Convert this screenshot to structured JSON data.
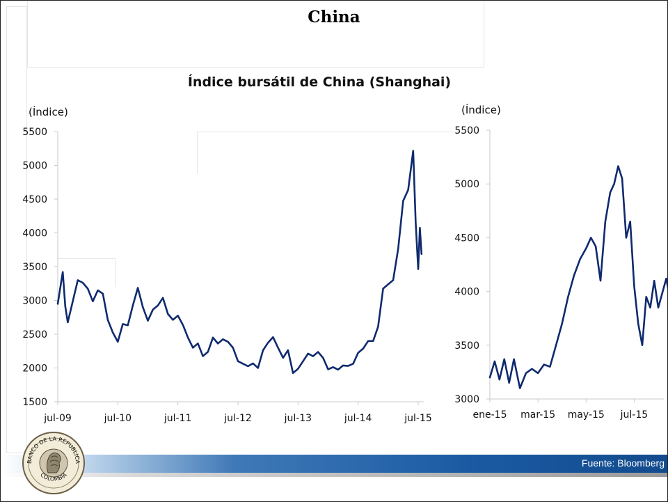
{
  "slide": {
    "title": "China",
    "source": "Fuente: Bloomberg",
    "seal_text_top": "BANCO DE LA REPUBLICA",
    "seal_text_bottom": "COLOMBIA"
  },
  "chart_data": [
    {
      "type": "line",
      "title": "Índice bursátil de China (Shanghai)",
      "ylabel": "(Índice)",
      "ylim": [
        1500,
        5500
      ],
      "yticks": [
        1500,
        2000,
        2500,
        3000,
        3500,
        4000,
        4500,
        5000,
        5500
      ],
      "xticks": [
        "jul-09",
        "jul-10",
        "jul-11",
        "jul-12",
        "jul-13",
        "jul-14",
        "jul-15"
      ],
      "xrange": [
        "jul-09",
        "jul-15"
      ],
      "line_color": "#0f2a6e",
      "grid": false,
      "series": [
        {
          "points": [
            [
              "jul-09",
              2950
            ],
            [
              "ago-09",
              3470
            ],
            [
              "ago-09",
              2950
            ],
            [
              "sep-09",
              2700
            ],
            [
              "oct-09",
              3000
            ],
            [
              "nov-09",
              3300
            ],
            [
              "dic-09",
              3250
            ],
            [
              "ene-10",
              3150
            ],
            [
              "feb-10",
              2950
            ],
            [
              "mar-10",
              3100
            ],
            [
              "abr-10",
              3150
            ],
            [
              "may-10",
              2750
            ],
            [
              "jun-10",
              2550
            ],
            [
              "jul-10",
              2400
            ],
            [
              "ago-10",
              2650
            ],
            [
              "sep-10",
              2620
            ],
            [
              "oct-10",
              2900
            ],
            [
              "nov-10",
              3150
            ],
            [
              "dic-10",
              2850
            ],
            [
              "ene-11",
              2750
            ],
            [
              "feb-11",
              2900
            ],
            [
              "mar-11",
              2950
            ],
            [
              "abr-11",
              3050
            ],
            [
              "may-11",
              2800
            ],
            [
              "jun-11",
              2700
            ],
            [
              "jul-11",
              2750
            ],
            [
              "ago-11",
              2600
            ],
            [
              "sep-11",
              2400
            ],
            [
              "oct-11",
              2350
            ],
            [
              "nov-11",
              2400
            ],
            [
              "dic-11",
              2200
            ],
            [
              "ene-12",
              2250
            ],
            [
              "feb-12",
              2450
            ],
            [
              "mar-12",
              2350
            ],
            [
              "abr-12",
              2400
            ],
            [
              "may-12",
              2350
            ],
            [
              "jun-12",
              2250
            ],
            [
              "jul-12",
              2150
            ],
            [
              "ago-12",
              2100
            ],
            [
              "sep-12",
              2050
            ],
            [
              "oct-12",
              2080
            ],
            [
              "nov-12",
              2000
            ],
            [
              "dic-12",
              2250
            ],
            [
              "ene-13",
              2350
            ],
            [
              "feb-13",
              2420
            ],
            [
              "mar-13",
              2250
            ],
            [
              "abr-13",
              2200
            ],
            [
              "may-13",
              2300
            ],
            [
              "jun-13",
              1950
            ],
            [
              "jul-13",
              2000
            ],
            [
              "ago-13",
              2100
            ],
            [
              "sep-13",
              2200
            ],
            [
              "oct-13",
              2150
            ],
            [
              "nov-13",
              2200
            ],
            [
              "dic-13",
              2100
            ],
            [
              "ene-14",
              2030
            ],
            [
              "feb-14",
              2050
            ],
            [
              "mar-14",
              2000
            ],
            [
              "abr-14",
              2050
            ],
            [
              "may-14",
              2030
            ],
            [
              "jun-14",
              2050
            ],
            [
              "jul-14",
              2200
            ],
            [
              "ago-14",
              2250
            ],
            [
              "sep-14",
              2350
            ],
            [
              "oct-14",
              2450
            ],
            [
              "nov-14",
              2650
            ],
            [
              "dic-14",
              3200
            ],
            [
              "ene-15",
              3250
            ],
            [
              "feb-15",
              3300
            ],
            [
              "mar-15",
              3750
            ],
            [
              "abr-15",
              4450
            ],
            [
              "may-15",
              4600
            ],
            [
              "jun-15",
              5166
            ],
            [
              "jun-15",
              4200
            ],
            [
              "jul-15",
              3500
            ],
            [
              "jul-15",
              4100
            ],
            [
              "jul-15",
              3700
            ]
          ]
        }
      ]
    },
    {
      "type": "line",
      "ylabel": "(Índice)",
      "ylim": [
        3000,
        5500
      ],
      "yticks": [
        3000,
        3500,
        4000,
        4500,
        5000,
        5500
      ],
      "xticks": [
        "ene-15",
        "mar-15",
        "may-15",
        "jul-15"
      ],
      "xrange": [
        "ene-15",
        "ago-15"
      ],
      "line_color": "#0f2a6e",
      "grid": false,
      "series": [
        {
          "points": [
            [
              "ene-15",
              3200
            ],
            [
              "ene-15",
              3350
            ],
            [
              "ene-15",
              3180
            ],
            [
              "ene-15",
              3370
            ],
            [
              "ene-15",
              3150
            ],
            [
              "feb-15",
              3370
            ],
            [
              "feb-15",
              3100
            ],
            [
              "feb-15",
              3240
            ],
            [
              "feb-15",
              3280
            ],
            [
              "mar-15",
              3240
            ],
            [
              "mar-15",
              3320
            ],
            [
              "mar-15",
              3300
            ],
            [
              "mar-15",
              3500
            ],
            [
              "abr-15",
              3700
            ],
            [
              "abr-15",
              3950
            ],
            [
              "abr-15",
              4150
            ],
            [
              "abr-15",
              4300
            ],
            [
              "may-15",
              4400
            ],
            [
              "may-15",
              4500
            ],
            [
              "may-15",
              4420
            ],
            [
              "may-15",
              4100
            ],
            [
              "may-15",
              4650
            ],
            [
              "jun-15",
              4920
            ],
            [
              "jun-15",
              5000
            ],
            [
              "jun-15",
              5166
            ],
            [
              "jun-15",
              5050
            ],
            [
              "jun-15",
              4500
            ],
            [
              "jun-15",
              4650
            ],
            [
              "jul-15",
              4050
            ],
            [
              "jul-15",
              3700
            ],
            [
              "jul-15",
              3500
            ],
            [
              "jul-15",
              3950
            ],
            [
              "jul-15",
              3850
            ],
            [
              "jul-15",
              4100
            ],
            [
              "ago-15",
              3850
            ],
            [
              "ago-15",
              4120
            ],
            [
              "ago-15",
              3720
            ]
          ]
        }
      ]
    }
  ]
}
